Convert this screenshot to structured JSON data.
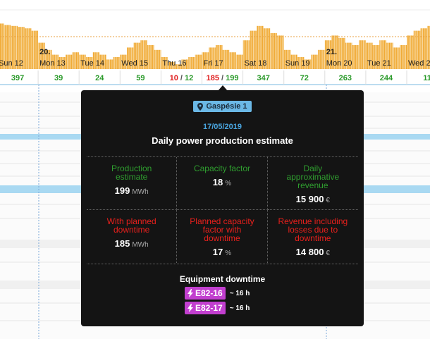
{
  "timeline": {
    "separator": "/",
    "days": [
      {
        "label": "Sun 12",
        "estimate": 397
      },
      {
        "label": "Mon 13",
        "week_label": "20.",
        "estimate": 39
      },
      {
        "label": "Tue 14",
        "estimate": 24
      },
      {
        "label": "Wed 15",
        "estimate": 59
      },
      {
        "label": "Thu 16",
        "with_downtime": 10,
        "estimate": 12
      },
      {
        "label": "Fri 17",
        "with_downtime": 185,
        "estimate": 199
      },
      {
        "label": "Sat 18",
        "estimate": 347
      },
      {
        "label": "Sun 19",
        "estimate": 72
      },
      {
        "label": "Mon 20",
        "week_label": "21.",
        "estimate": 263
      },
      {
        "label": "Tue 21",
        "estimate": 244
      },
      {
        "label": "Wed 2",
        "estimate": 11
      }
    ],
    "production_profile": [
      95,
      92,
      90,
      88,
      85,
      80,
      55,
      40,
      30,
      25,
      30,
      35,
      30,
      25,
      35,
      30,
      20,
      25,
      30,
      45,
      55,
      60,
      50,
      40,
      25,
      15,
      10,
      20,
      25,
      30,
      35,
      45,
      50,
      40,
      35,
      30,
      60,
      80,
      90,
      85,
      75,
      70,
      40,
      30,
      25,
      20,
      30,
      40,
      60,
      70,
      65,
      55,
      50,
      60,
      55,
      50,
      60,
      55,
      45,
      50,
      70,
      80,
      85,
      90,
      90,
      90
    ]
  },
  "tooltip": {
    "site": "Gaspésie 1",
    "date": "17/05/2019",
    "title": "Daily power production estimate",
    "metrics": [
      {
        "label": "Production estimate",
        "value": 199,
        "unit": "MWh",
        "status": "estimate"
      },
      {
        "label": "Capacity factor",
        "value": 18,
        "unit": "%",
        "status": "estimate"
      },
      {
        "label": "Daily approximative revenue",
        "value": "15 900",
        "unit": "€",
        "status": "estimate"
      },
      {
        "label": "With planned downtime",
        "value": 185,
        "unit": "MWh",
        "status": "downtime"
      },
      {
        "label": "Planned capacity factor with downtime",
        "value": 17,
        "unit": "%",
        "status": "downtime"
      },
      {
        "label": "Revenue including losses due to downtime",
        "value": "14 800",
        "unit": "€",
        "status": "downtime"
      }
    ],
    "equipment_downtime": {
      "title": "Equipment downtime",
      "items": [
        {
          "id": "E82-16",
          "duration": "~ 16 h"
        },
        {
          "id": "E82-17",
          "duration": "~ 16 h"
        }
      ]
    }
  }
}
